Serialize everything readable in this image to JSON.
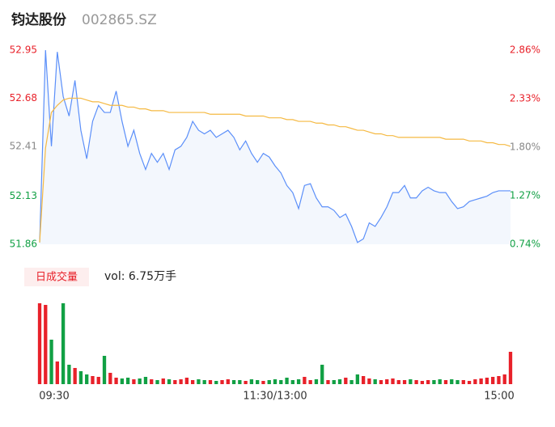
{
  "header": {
    "name": "钧达股份",
    "code": "002865.SZ"
  },
  "chart_data": {
    "type": "line",
    "x": [
      0,
      3,
      6,
      9,
      12,
      15,
      18,
      21,
      24,
      27,
      30,
      33,
      36,
      39,
      42,
      45,
      48,
      51,
      54,
      57,
      60,
      63,
      66,
      69,
      72,
      75,
      78,
      81,
      84,
      87,
      90,
      93,
      96,
      99,
      102,
      105,
      108,
      111,
      114,
      117,
      120,
      123,
      126,
      129,
      132,
      135,
      138,
      141,
      144,
      147,
      150,
      153,
      156,
      159,
      162,
      165,
      168,
      171,
      174,
      177,
      180,
      183,
      186,
      189,
      192,
      195,
      198,
      201,
      204,
      207,
      210,
      213,
      216,
      219,
      222,
      225,
      228,
      231,
      234,
      237,
      240
    ],
    "xlim": [
      0,
      240
    ],
    "xticks": [
      {
        "value": 0,
        "label": "09:30"
      },
      {
        "value": 120,
        "label": "11:30/13:00"
      },
      {
        "value": 240,
        "label": "15:00"
      }
    ],
    "series": [
      {
        "name": "price",
        "color": "#5b8ff9",
        "values": [
          51.87,
          52.95,
          52.41,
          52.94,
          52.69,
          52.58,
          52.78,
          52.5,
          52.34,
          52.55,
          52.64,
          52.6,
          52.6,
          52.72,
          52.55,
          52.41,
          52.5,
          52.37,
          52.28,
          52.37,
          52.32,
          52.37,
          52.28,
          52.39,
          52.41,
          52.46,
          52.55,
          52.5,
          52.48,
          52.5,
          52.46,
          52.48,
          52.5,
          52.46,
          52.39,
          52.44,
          52.37,
          52.32,
          52.37,
          52.35,
          52.3,
          52.26,
          52.19,
          52.15,
          52.06,
          52.19,
          52.2,
          52.12,
          52.07,
          52.07,
          52.05,
          52.01,
          52.03,
          51.96,
          51.87,
          51.89,
          51.98,
          51.96,
          52.01,
          52.07,
          52.15,
          52.15,
          52.19,
          52.12,
          52.12,
          52.16,
          52.18,
          52.16,
          52.15,
          52.15,
          52.1,
          52.06,
          52.07,
          52.1,
          52.11,
          52.12,
          52.13,
          52.15,
          52.16,
          52.16,
          52.16
        ]
      },
      {
        "name": "average",
        "color": "#f5b942",
        "values": [
          51.87,
          52.4,
          52.6,
          52.64,
          52.67,
          52.68,
          52.68,
          52.68,
          52.67,
          52.66,
          52.66,
          52.65,
          52.64,
          52.64,
          52.64,
          52.63,
          52.63,
          52.62,
          52.62,
          52.61,
          52.61,
          52.61,
          52.6,
          52.6,
          52.6,
          52.6,
          52.6,
          52.6,
          52.6,
          52.59,
          52.59,
          52.59,
          52.59,
          52.59,
          52.59,
          52.58,
          52.58,
          52.58,
          52.58,
          52.57,
          52.57,
          52.57,
          52.56,
          52.56,
          52.55,
          52.55,
          52.55,
          52.54,
          52.54,
          52.53,
          52.53,
          52.52,
          52.52,
          52.51,
          52.5,
          52.5,
          52.49,
          52.48,
          52.48,
          52.47,
          52.47,
          52.46,
          52.46,
          52.46,
          52.46,
          52.46,
          52.46,
          52.46,
          52.46,
          52.45,
          52.45,
          52.45,
          52.45,
          52.44,
          52.44,
          52.44,
          52.43,
          52.43,
          52.42,
          52.42,
          52.41
        ]
      }
    ],
    "ylim": [
      51.86,
      52.95
    ],
    "yticks": [
      52.95,
      52.68,
      52.41,
      52.13,
      51.86
    ],
    "y2lim": [
      0.74,
      2.86
    ],
    "y2ticks": [
      {
        "value": 2.86,
        "label": "2.86%"
      },
      {
        "value": 2.33,
        "label": "2.33%"
      },
      {
        "value": 1.8,
        "label": "1.80%"
      },
      {
        "value": 1.27,
        "label": "1.27%"
      },
      {
        "value": 0.74,
        "label": "0.74%"
      }
    ],
    "up_color": "#e8212a",
    "down_color": "#11a044",
    "flat_color": "#888888",
    "volume": {
      "legend": "日成交量",
      "summary": "vol: 6.75万手",
      "values": [
        100,
        98,
        55,
        28,
        100,
        24,
        20,
        16,
        12,
        10,
        9,
        35,
        14,
        8,
        7,
        8,
        6,
        7,
        9,
        6,
        5,
        7,
        6,
        5,
        6,
        8,
        5,
        6,
        5,
        5,
        4,
        5,
        6,
        5,
        5,
        4,
        6,
        5,
        4,
        5,
        6,
        5,
        8,
        5,
        6,
        9,
        5,
        6,
        24,
        5,
        5,
        6,
        8,
        5,
        12,
        10,
        7,
        6,
        5,
        6,
        7,
        5,
        5,
        6,
        5,
        4,
        5,
        5,
        6,
        5,
        6,
        5,
        5,
        4,
        6,
        7,
        8,
        9,
        10,
        12,
        40
      ]
    }
  }
}
